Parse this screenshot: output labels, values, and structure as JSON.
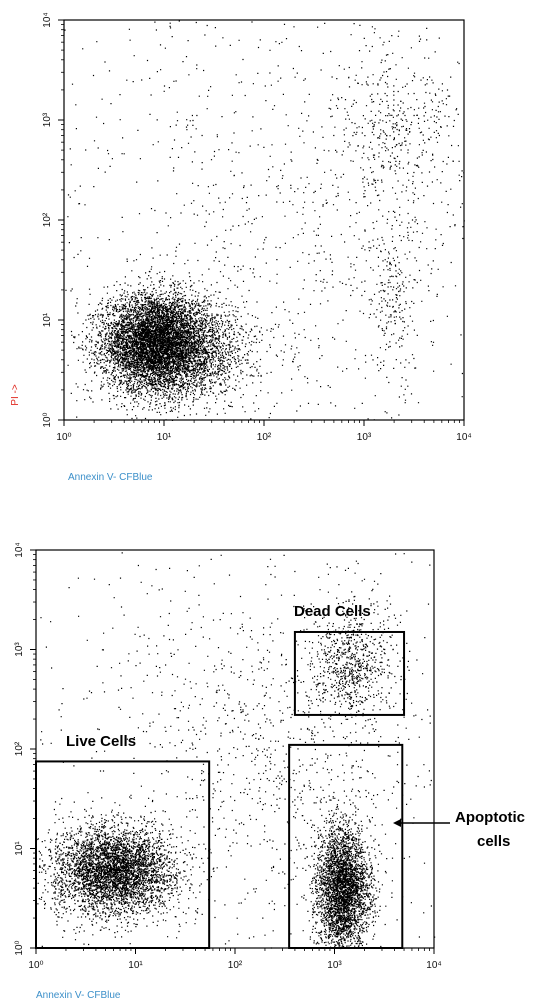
{
  "chart_data": [
    {
      "type": "scatter",
      "xscale": "log",
      "yscale": "log",
      "xlim": [
        1,
        10000
      ],
      "ylim": [
        1,
        10000
      ],
      "xlabel": "Annexin V- CFBlue",
      "ylabel": "PI ->",
      "x_tick_labels": [
        "10⁰",
        "10¹",
        "10²",
        "10³",
        "10⁴"
      ],
      "y_tick_labels": [
        "10⁰",
        "10¹",
        "10²",
        "10³",
        "10⁴"
      ],
      "grid": false,
      "populations": [
        {
          "center": [
            8,
            6
          ],
          "spread": [
            0.26,
            0.24
          ],
          "count": 6000
        },
        {
          "center": [
            18,
            5
          ],
          "spread": [
            0.33,
            0.25
          ],
          "count": 1800
        },
        {
          "center": [
            2000,
            800
          ],
          "spread": [
            0.33,
            0.38
          ],
          "count": 380
        },
        {
          "center": [
            2000,
            15
          ],
          "spread": [
            0.12,
            0.45
          ],
          "count": 220
        },
        {
          "center": [
            200,
            100
          ],
          "spread": [
            1.0,
            1.1
          ],
          "count": 700
        }
      ],
      "colors": {
        "points": "#000000",
        "ylabel": "#e0281f",
        "xlabel": "#3b8fc9"
      },
      "annotations": []
    },
    {
      "type": "scatter",
      "xscale": "log",
      "yscale": "log",
      "xlim": [
        1,
        10000
      ],
      "ylim": [
        1,
        10000
      ],
      "xlabel": "Annexin V- CFBlue",
      "ylabel": "",
      "x_tick_labels": [
        "10⁰",
        "10¹",
        "10²",
        "10³",
        "10⁴"
      ],
      "y_tick_labels": [
        "10⁰",
        "10¹",
        "10²",
        "10³",
        "10⁴"
      ],
      "grid": false,
      "populations": [
        {
          "center": [
            6,
            6
          ],
          "spread": [
            0.3,
            0.22
          ],
          "count": 4200
        },
        {
          "center": [
            1200,
            4
          ],
          "spread": [
            0.13,
            0.32
          ],
          "count": 3400
        },
        {
          "center": [
            1500,
            700
          ],
          "spread": [
            0.2,
            0.28
          ],
          "count": 700
        },
        {
          "center": [
            250,
            120
          ],
          "spread": [
            0.8,
            0.8
          ],
          "count": 900
        }
      ],
      "gates": [
        {
          "name": "Live Cells",
          "x": [
            0.8,
            55
          ],
          "y": [
            0.8,
            75
          ]
        },
        {
          "name": "Apoptotic cells",
          "x": [
            350,
            4800
          ],
          "y": [
            0.8,
            110
          ]
        },
        {
          "name": "Dead Cells",
          "x": [
            400,
            5000
          ],
          "y": [
            220,
            1500
          ]
        }
      ],
      "annotations": [
        {
          "text": "Dead Cells"
        },
        {
          "text": "Live Cells"
        },
        {
          "text": "Apoptotic",
          "text2": "cells"
        }
      ],
      "colors": {
        "points": "#000000",
        "xlabel": "#3b8fc9",
        "gate": "#000000"
      }
    }
  ]
}
